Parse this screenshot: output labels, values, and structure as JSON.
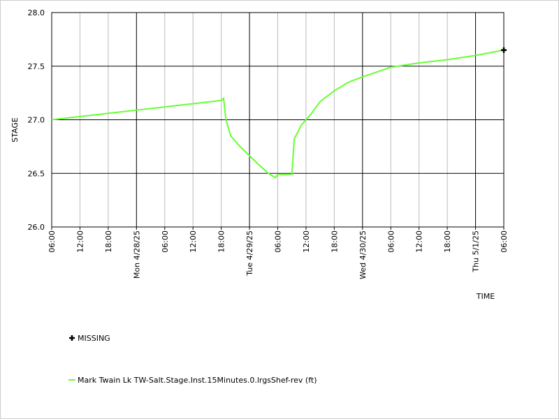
{
  "chart_data": {
    "type": "line",
    "y_label": "STAGE",
    "x_label": "TIME",
    "xlim": [
      0,
      96
    ],
    "xticks": [
      {
        "value": 0,
        "label": "06:00"
      },
      {
        "value": 6,
        "label": "12:00"
      },
      {
        "value": 12,
        "label": "18:00"
      },
      {
        "value": 18,
        "label": "Mon 4/28/25"
      },
      {
        "value": 24,
        "label": "06:00"
      },
      {
        "value": 30,
        "label": "12:00"
      },
      {
        "value": 36,
        "label": "18:00"
      },
      {
        "value": 42,
        "label": "Tue 4/29/25"
      },
      {
        "value": 48,
        "label": "06:00"
      },
      {
        "value": 54,
        "label": "12:00"
      },
      {
        "value": 60,
        "label": "18:00"
      },
      {
        "value": 66,
        "label": "Wed 4/30/25"
      },
      {
        "value": 72,
        "label": "06:00"
      },
      {
        "value": 78,
        "label": "12:00"
      },
      {
        "value": 84,
        "label": "18:00"
      },
      {
        "value": 90,
        "label": "Thu 5/1/25"
      },
      {
        "value": 96,
        "label": "06:00"
      }
    ],
    "ylim": [
      26,
      28
    ],
    "yticks": [
      {
        "value": 26,
        "label": "26.0"
      },
      26.5,
      {
        "value": 27,
        "label": "27.0"
      },
      27.5,
      {
        "value": 28,
        "label": "28.0"
      }
    ],
    "grid": true,
    "series": [
      {
        "name": "MISSING",
        "color": "#000000",
        "marker": "plus",
        "x": [
          96
        ],
        "values": [
          27.65
        ]
      },
      {
        "name": "Mark Twain Lk TW-Salt.Stage.Inst.15Minutes.0.lrgsShef-rev (ft)",
        "color": "#66ff33",
        "x": [
          0,
          6,
          12,
          18,
          24,
          30,
          36,
          36.5,
          37,
          38,
          40,
          44,
          46,
          47.5,
          48,
          51,
          51.5,
          53,
          55,
          57,
          60,
          63,
          66,
          70,
          72,
          78,
          84,
          90,
          96
        ],
        "values": [
          27.0,
          27.03,
          27.06,
          27.09,
          27.12,
          27.15,
          27.18,
          27.2,
          27.0,
          26.85,
          26.75,
          26.58,
          26.5,
          26.46,
          26.49,
          26.49,
          26.82,
          26.95,
          27.05,
          27.17,
          27.27,
          27.35,
          27.4,
          27.46,
          27.49,
          27.53,
          27.56,
          27.6,
          27.65
        ]
      }
    ]
  }
}
